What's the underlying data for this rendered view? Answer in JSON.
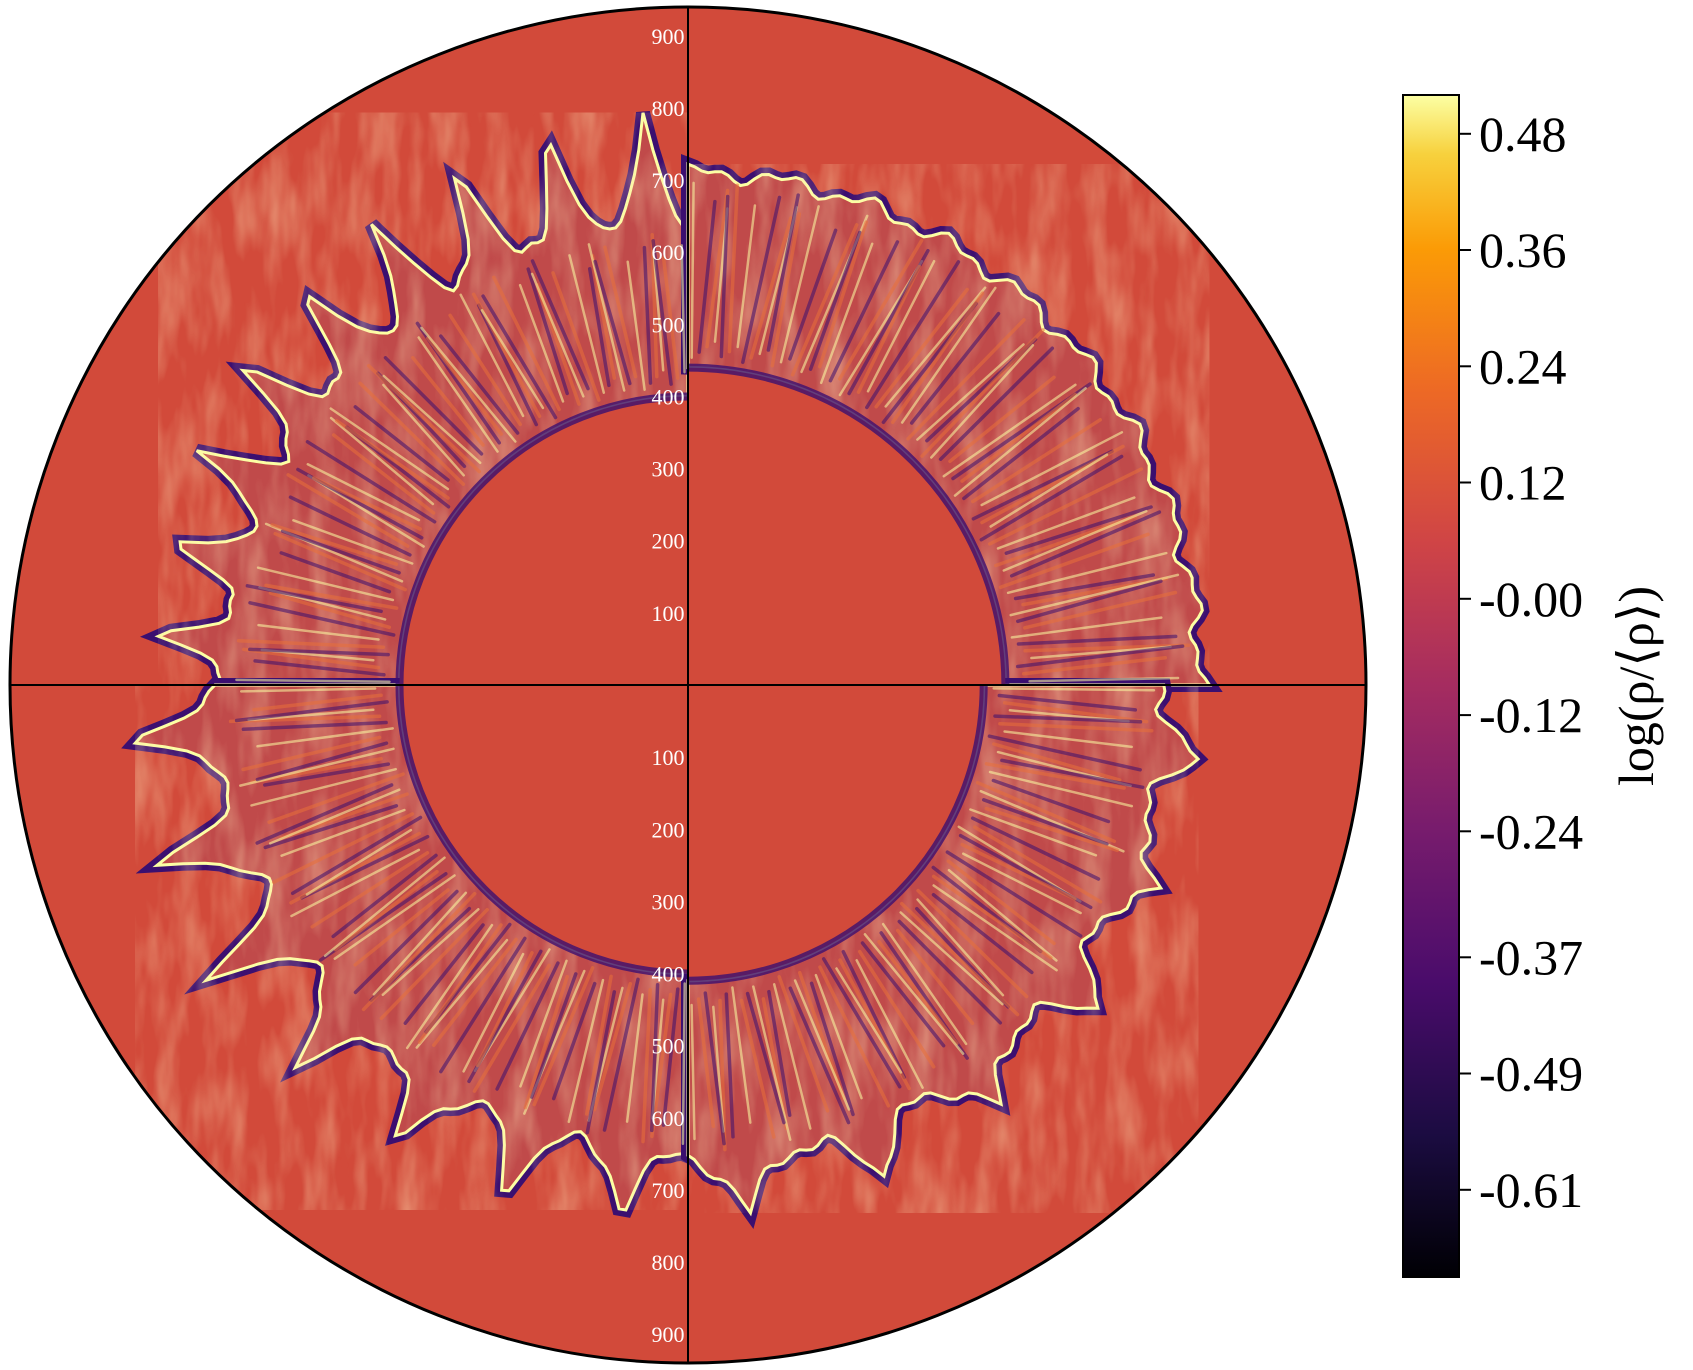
{
  "chart_data": {
    "type": "heatmap",
    "plot_kind": "polar density map (two hemispheres, four quadrants)",
    "radial_axis": {
      "ticks": [
        100,
        200,
        300,
        400,
        500,
        600,
        700,
        800,
        900
      ],
      "tick_labels_upper": [
        "900",
        "800",
        "700",
        "600",
        "500",
        "400",
        "300",
        "200",
        "100"
      ],
      "tick_labels_lower": [
        "100",
        "200",
        "300",
        "400",
        "500",
        "600",
        "700",
        "800",
        "900"
      ],
      "rmax": 940
    },
    "colorbar": {
      "label": "log(ρ/⟨ρ⟩)",
      "colormap": "inferno",
      "vmin": -0.7,
      "vmax": 0.52,
      "ticks": [
        0.48,
        0.36,
        0.24,
        0.12,
        -0.0,
        -0.12,
        -0.24,
        -0.37,
        -0.49,
        -0.61
      ],
      "tick_labels": [
        "0.48",
        "0.36",
        "0.24",
        "0.12",
        "-0.00",
        "-0.12",
        "-0.24",
        "-0.37",
        "-0.49",
        "-0.61"
      ]
    },
    "background_value": -0.03,
    "quadrants": [
      {
        "name": "upper-left",
        "inner_radius": 400,
        "shell_outer_radius": 640,
        "finger_tip_radius": 810,
        "finger_count": 9
      },
      {
        "name": "upper-right",
        "inner_radius": 440,
        "shell_outer_radius": 710,
        "finger_tip_radius": 730,
        "finger_count": 0
      },
      {
        "name": "lower-left",
        "inner_radius": 400,
        "shell_outer_radius": 650,
        "finger_tip_radius": 790,
        "finger_count": 7
      },
      {
        "name": "lower-right",
        "inner_radius": 410,
        "shell_outer_radius": 660,
        "finger_tip_radius": 740,
        "finger_count": 6
      }
    ],
    "colors": {
      "background": "#d24a3a",
      "shell_dark": "#3b0f70",
      "shell_mid": "#e8703a",
      "shell_bright": "#fcffa4",
      "axis_lines": "#000000",
      "tick_text": "#ffffff"
    }
  }
}
